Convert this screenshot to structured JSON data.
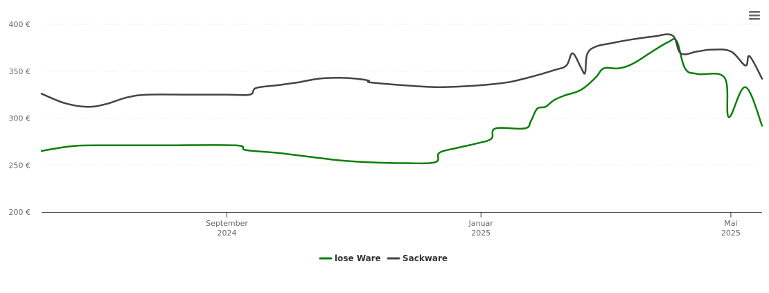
{
  "chart_data": {
    "type": "line",
    "title": "",
    "xlabel": "",
    "ylabel": "",
    "ylim": [
      200,
      400
    ],
    "y_ticks": [
      {
        "value": 200,
        "label": "200 €"
      },
      {
        "value": 250,
        "label": "250 €"
      },
      {
        "value": 300,
        "label": "300 €"
      },
      {
        "value": 350,
        "label": "350 €"
      },
      {
        "value": 400,
        "label": "400 €"
      }
    ],
    "xlim": [
      "2024-06-04",
      "2025-05-16"
    ],
    "x_ticks": [
      {
        "date": "2024-09-01",
        "month": "September",
        "year": "2024"
      },
      {
        "date": "2025-01-01",
        "month": "Januar",
        "year": "2025"
      },
      {
        "date": "2025-05-01",
        "month": "Mai",
        "year": "2025"
      }
    ],
    "grid": true,
    "legend_position": "bottom-center",
    "series": [
      {
        "name": "lose Ware",
        "color": "#0a7e07",
        "points": [
          [
            "2024-06-04",
            265
          ],
          [
            "2024-06-18",
            270
          ],
          [
            "2024-07-01",
            271
          ],
          [
            "2024-08-01",
            271
          ],
          [
            "2024-09-05",
            271
          ],
          [
            "2024-09-10",
            266
          ],
          [
            "2024-09-25",
            263
          ],
          [
            "2024-10-10",
            259
          ],
          [
            "2024-10-25",
            255
          ],
          [
            "2024-11-08",
            253
          ],
          [
            "2024-11-25",
            252
          ],
          [
            "2024-12-10",
            253
          ],
          [
            "2024-12-12",
            263
          ],
          [
            "2024-12-20",
            268
          ],
          [
            "2024-12-30",
            273
          ],
          [
            "2025-01-06",
            278
          ],
          [
            "2025-01-08",
            289
          ],
          [
            "2025-01-22",
            289
          ],
          [
            "2025-01-25",
            297
          ],
          [
            "2025-01-28",
            310
          ],
          [
            "2025-02-01",
            312
          ],
          [
            "2025-02-05",
            319
          ],
          [
            "2025-02-10",
            324
          ],
          [
            "2025-02-18",
            330
          ],
          [
            "2025-02-25",
            343
          ],
          [
            "2025-03-01",
            353
          ],
          [
            "2025-03-08",
            353
          ],
          [
            "2025-03-15",
            358
          ],
          [
            "2025-03-25",
            372
          ],
          [
            "2025-04-01",
            381
          ],
          [
            "2025-04-05",
            382
          ],
          [
            "2025-04-09",
            353
          ],
          [
            "2025-04-15",
            347
          ],
          [
            "2025-04-28",
            343
          ],
          [
            "2025-05-08",
            333
          ],
          [
            "2025-05-18",
            322
          ],
          [
            "2025-04-30",
            301
          ],
          [
            "2025-05-16",
            292
          ]
        ]
      },
      {
        "name": "Sackware",
        "color": "#434348",
        "points": [
          [
            "2024-06-04",
            326
          ],
          [
            "2024-06-15",
            316
          ],
          [
            "2024-06-26",
            312
          ],
          [
            "2024-07-05",
            315
          ],
          [
            "2024-07-15",
            322
          ],
          [
            "2024-07-25",
            325
          ],
          [
            "2024-08-15",
            325
          ],
          [
            "2024-09-01",
            325
          ],
          [
            "2024-09-12",
            325
          ],
          [
            "2024-09-15",
            332
          ],
          [
            "2024-09-25",
            335
          ],
          [
            "2024-10-05",
            338
          ],
          [
            "2024-10-15",
            342
          ],
          [
            "2024-10-25",
            343
          ],
          [
            "2024-11-02",
            342
          ],
          [
            "2024-11-08",
            340
          ],
          [
            "2024-11-09",
            338
          ],
          [
            "2024-11-25",
            335
          ],
          [
            "2024-12-10",
            333
          ],
          [
            "2024-12-25",
            334
          ],
          [
            "2025-01-10",
            337
          ],
          [
            "2025-01-20",
            341
          ],
          [
            "2025-02-05",
            351
          ],
          [
            "2025-02-11",
            356
          ],
          [
            "2025-02-14",
            369
          ],
          [
            "2025-02-18",
            354
          ],
          [
            "2025-02-20",
            348
          ],
          [
            "2025-02-21",
            368
          ],
          [
            "2025-02-25",
            376
          ],
          [
            "2025-03-05",
            380
          ],
          [
            "2025-03-15",
            384
          ],
          [
            "2025-03-25",
            387
          ],
          [
            "2025-04-03",
            388
          ],
          [
            "2025-04-07",
            369
          ],
          [
            "2025-04-15",
            371
          ],
          [
            "2025-04-22",
            373
          ],
          [
            "2025-05-01",
            371
          ],
          [
            "2025-05-10",
            366
          ],
          [
            "2025-05-20",
            360
          ],
          [
            "2025-05-28",
            357
          ],
          [
            "2025-05-08",
            356
          ],
          [
            "2025-05-16",
            342
          ]
        ]
      }
    ]
  },
  "menu": {
    "icon": "hamburger-menu-icon"
  }
}
